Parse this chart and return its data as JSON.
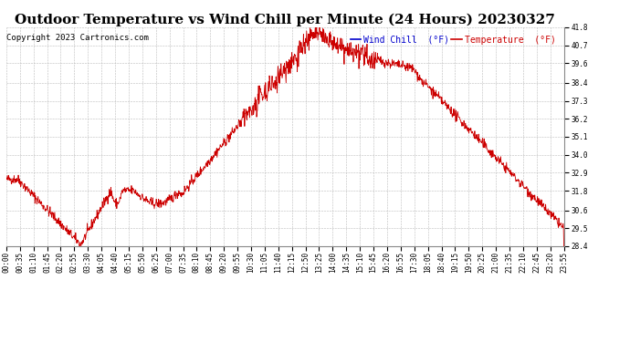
{
  "title": "Outdoor Temperature vs Wind Chill per Minute (24 Hours) 20230327",
  "copyright": "Copyright 2023 Cartronics.com",
  "legend_wind_chill": "Wind Chill  (°F)",
  "legend_temperature": "Temperature  (°F)",
  "wind_chill_color": "#0000cc",
  "temperature_color": "#cc0000",
  "line_color": "#cc0000",
  "background_color": "#ffffff",
  "grid_color": "#bbbbbb",
  "ylim_min": 28.4,
  "ylim_max": 41.8,
  "yticks": [
    28.4,
    29.5,
    30.6,
    31.8,
    32.9,
    34.0,
    35.1,
    36.2,
    37.3,
    38.4,
    39.6,
    40.7,
    41.8
  ],
  "xtick_labels": [
    "00:00",
    "00:35",
    "01:10",
    "01:45",
    "02:20",
    "02:55",
    "03:30",
    "04:05",
    "04:40",
    "05:15",
    "05:50",
    "06:25",
    "07:00",
    "07:35",
    "08:10",
    "08:45",
    "09:20",
    "09:55",
    "10:30",
    "11:05",
    "11:40",
    "12:15",
    "12:50",
    "13:25",
    "14:00",
    "14:35",
    "15:10",
    "15:45",
    "16:20",
    "16:55",
    "17:30",
    "18:05",
    "18:40",
    "19:15",
    "19:50",
    "20:25",
    "21:00",
    "21:35",
    "22:10",
    "22:45",
    "23:20",
    "23:55"
  ],
  "title_fontsize": 11,
  "tick_fontsize": 5.5,
  "copyright_fontsize": 6.5,
  "legend_fontsize": 7
}
